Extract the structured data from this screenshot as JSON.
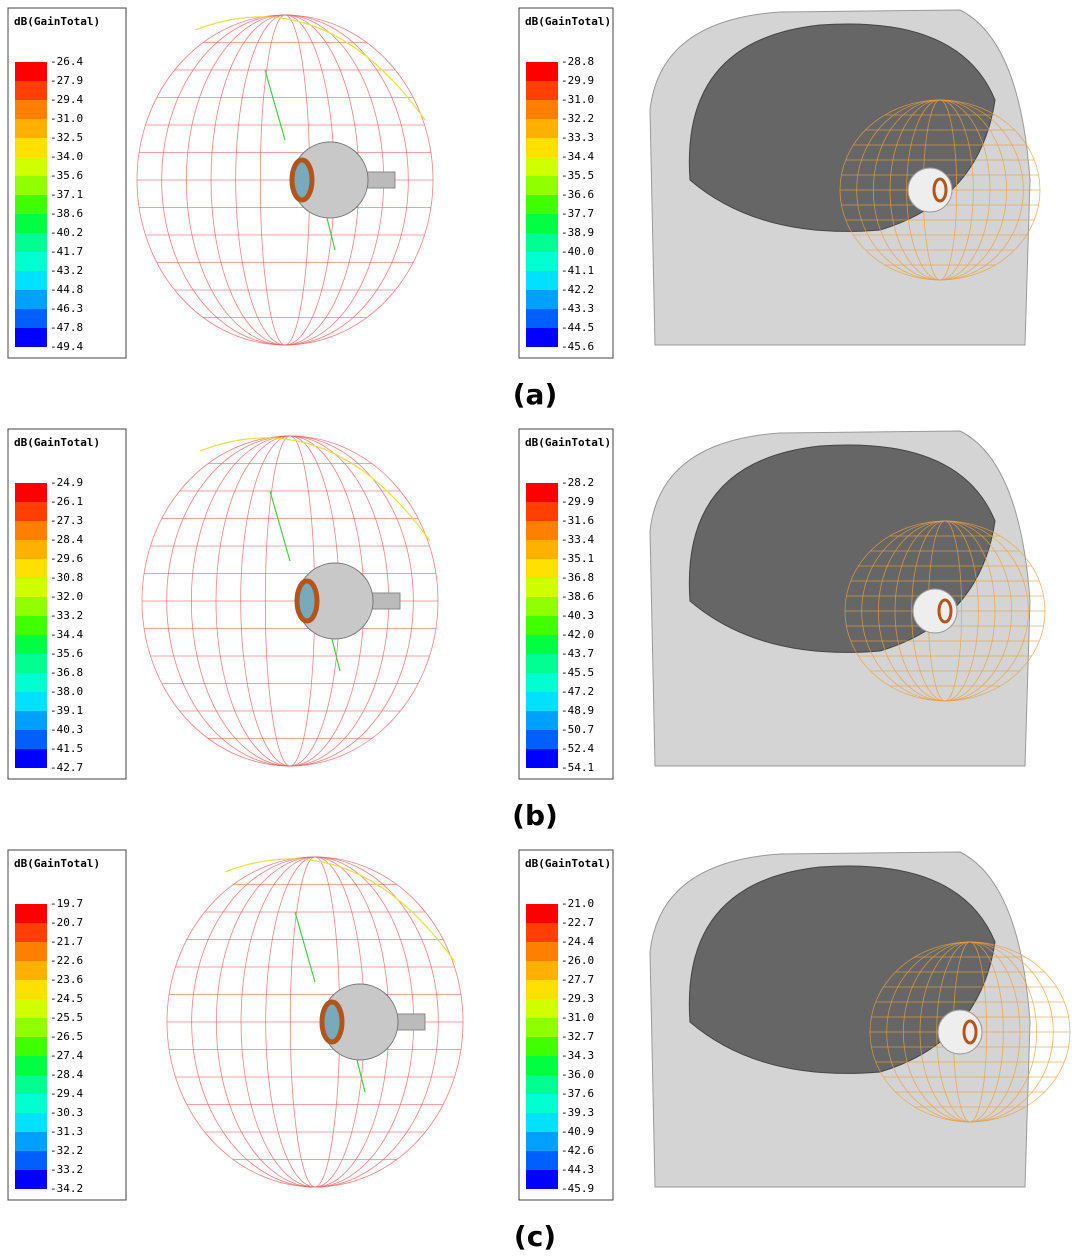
{
  "panels": [
    {
      "caption": "(a)",
      "left": {
        "title": "dB(GainTotal)",
        "labels": [
          "-26.4",
          "-27.9",
          "-29.4",
          "-31.0",
          "-32.5",
          "-34.0",
          "-35.6",
          "-37.1",
          "-38.6",
          "-40.2",
          "-41.7",
          "-43.2",
          "-44.8",
          "-46.3",
          "-47.8",
          "-49.4"
        ]
      },
      "right": {
        "title": "dB(GainTotal)",
        "labels": [
          "-28.8",
          "-29.9",
          "-31.0",
          "-32.2",
          "-33.3",
          "-34.4",
          "-35.5",
          "-36.6",
          "-37.7",
          "-38.9",
          "-40.0",
          "-41.1",
          "-42.2",
          "-43.3",
          "-44.5",
          "-45.6"
        ]
      }
    },
    {
      "caption": "(b)",
      "left": {
        "title": "dB(GainTotal)",
        "labels": [
          "-24.9",
          "-26.1",
          "-27.3",
          "-28.4",
          "-29.6",
          "-30.8",
          "-32.0",
          "-33.2",
          "-34.4",
          "-35.6",
          "-36.8",
          "-38.0",
          "-39.1",
          "-40.3",
          "-41.5",
          "-42.7"
        ]
      },
      "right": {
        "title": "dB(GainTotal)",
        "labels": [
          "-28.2",
          "-29.9",
          "-31.6",
          "-33.4",
          "-35.1",
          "-36.8",
          "-38.6",
          "-40.3",
          "-42.0",
          "-43.7",
          "-45.5",
          "-47.2",
          "-48.9",
          "-50.7",
          "-52.4",
          "-54.1"
        ]
      }
    },
    {
      "caption": "(c)",
      "left": {
        "title": "dB(GainTotal)",
        "labels": [
          "-19.7",
          "-20.7",
          "-21.7",
          "-22.6",
          "-23.6",
          "-24.5",
          "-25.5",
          "-26.5",
          "-27.4",
          "-28.4",
          "-29.4",
          "-30.3",
          "-31.3",
          "-32.2",
          "-33.2",
          "-34.2"
        ]
      },
      "right": {
        "title": "dB(GainTotal)",
        "labels": [
          "-21.0",
          "-22.7",
          "-24.4",
          "-26.0",
          "-27.7",
          "-29.3",
          "-31.0",
          "-32.7",
          "-34.3",
          "-36.0",
          "-37.6",
          "-39.3",
          "-40.9",
          "-42.6",
          "-44.3",
          "-45.9"
        ]
      }
    }
  ]
}
